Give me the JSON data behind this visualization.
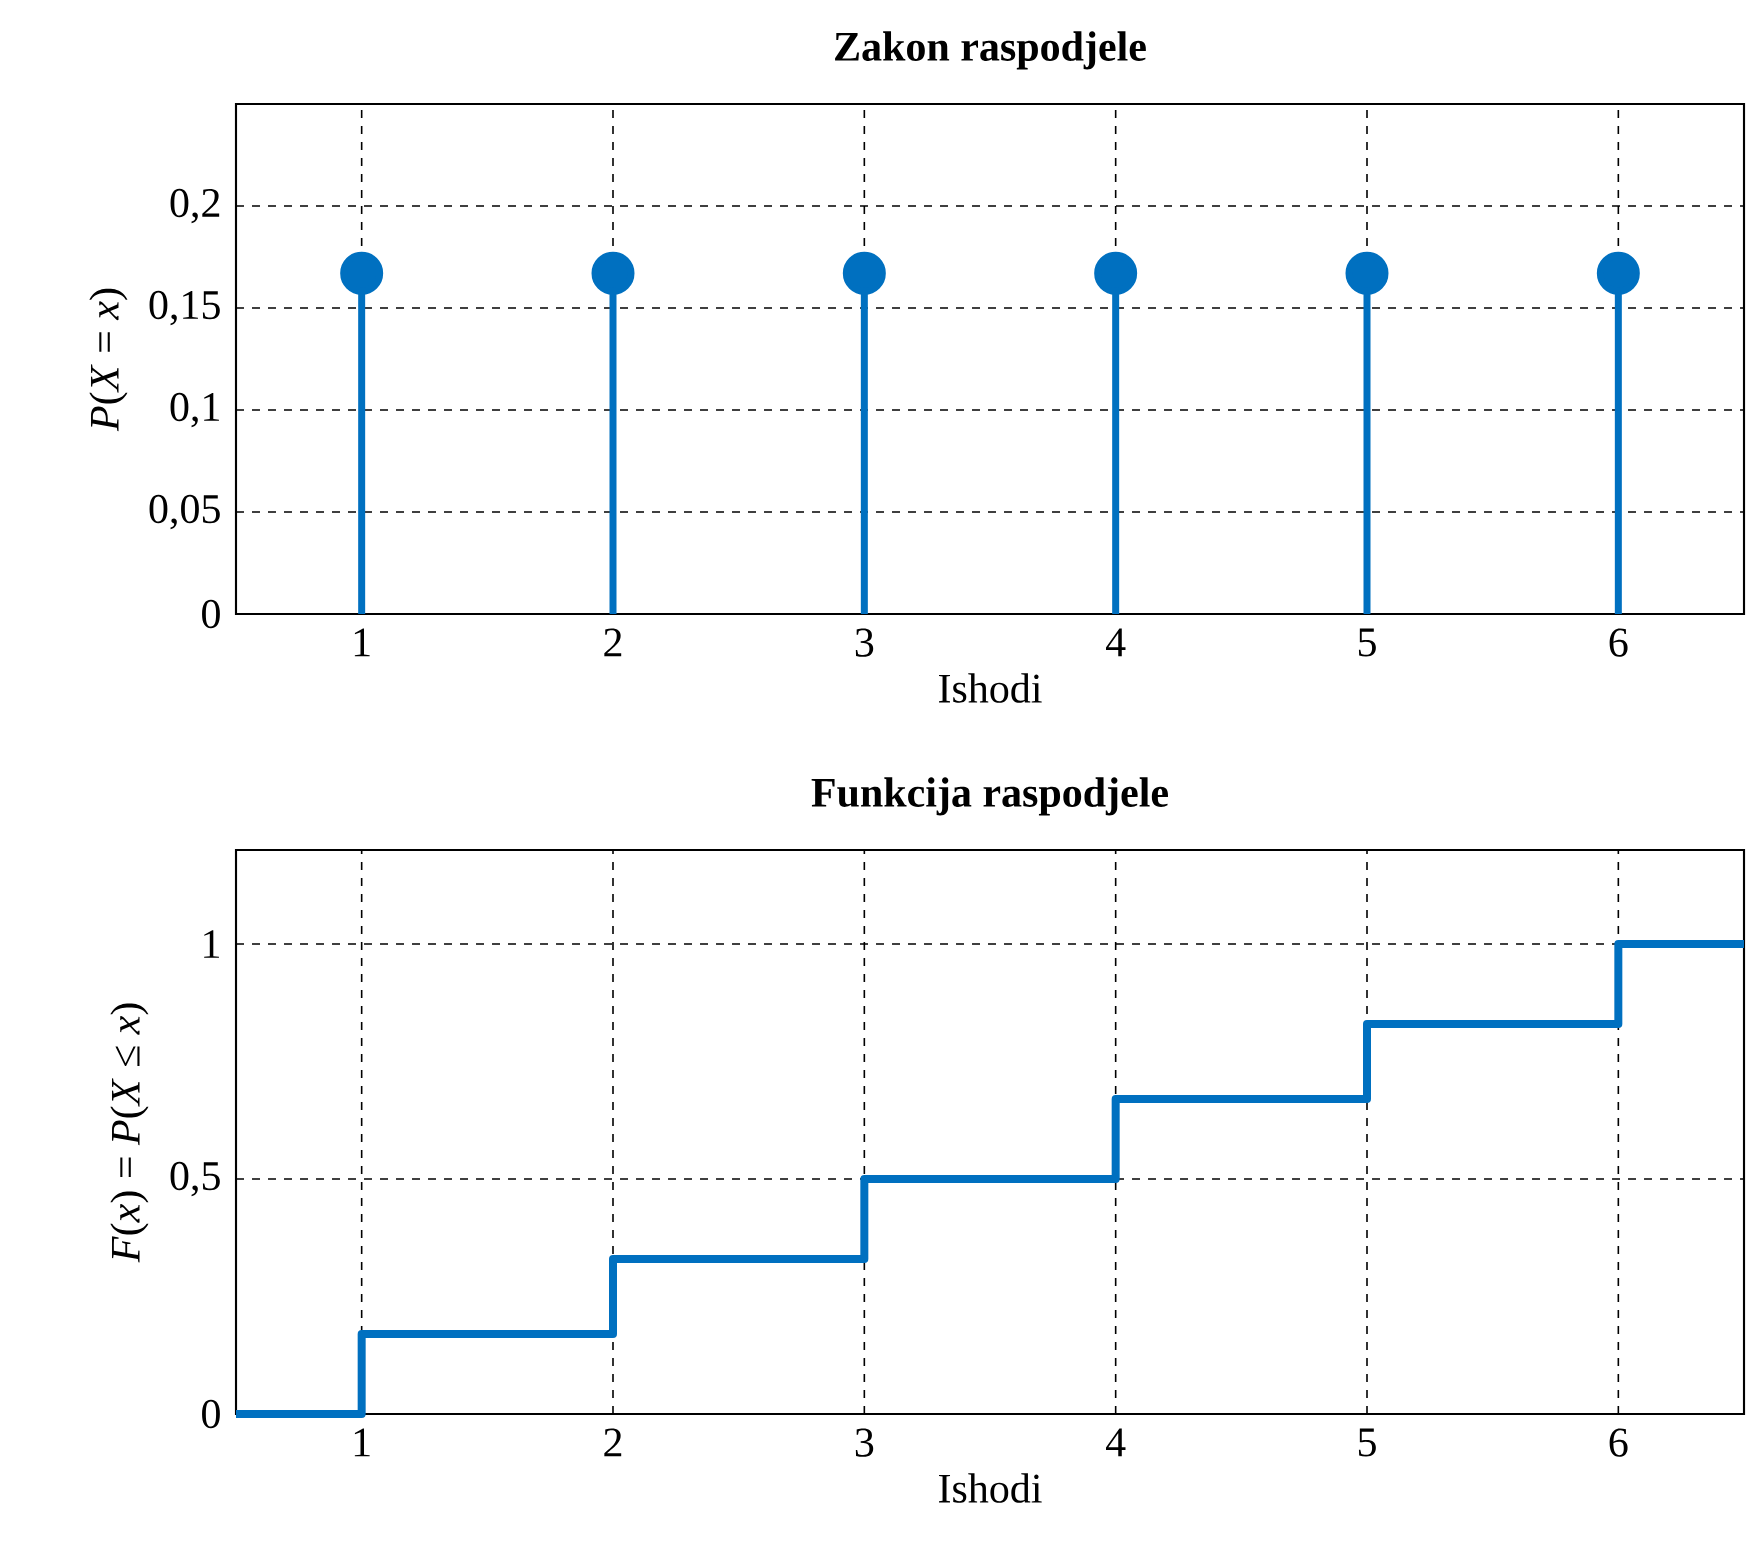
{
  "chart_data": [
    {
      "type": "lollipop",
      "title": "Zakon raspodjele",
      "xlabel": "Ishodi",
      "ylabel": "*P*(*X* = *x*)",
      "x": [
        1,
        2,
        3,
        4,
        5,
        6
      ],
      "values": [
        0.167,
        0.167,
        0.167,
        0.167,
        0.167,
        0.167
      ],
      "color": "#0070c0",
      "marker": "circle",
      "xlim": [
        0.5,
        6.5
      ],
      "xticks": [
        1,
        2,
        3,
        4,
        5,
        6
      ],
      "ylim": [
        0,
        0.25
      ],
      "yticks": [
        0,
        {
          "value": 0.05,
          "label": "0,05"
        },
        {
          "value": 0.1,
          "label": "0,1"
        },
        {
          "value": 0.15,
          "label": "0,15"
        },
        {
          "value": 0.2,
          "label": "0,2"
        }
      ],
      "grid": true
    },
    {
      "type": "step",
      "title": "Funkcija raspodjele",
      "xlabel": "Ishodi",
      "ylabel": "*F*(*x*) = *P*(*X* ≤ *x*)",
      "x": [
        0.5,
        1,
        2,
        3,
        4,
        5,
        6,
        6.5
      ],
      "values": [
        0,
        0.17,
        0.33,
        0.5,
        0.67,
        0.83,
        1,
        1
      ],
      "color": "#0070c0",
      "xlim": [
        0.5,
        6.5
      ],
      "xticks": [
        1,
        2,
        3,
        4,
        5,
        6
      ],
      "ylim": [
        0,
        1.2
      ],
      "yticks": [
        0,
        {
          "value": 0.5,
          "label": "0,5"
        },
        1
      ],
      "grid": true
    }
  ]
}
